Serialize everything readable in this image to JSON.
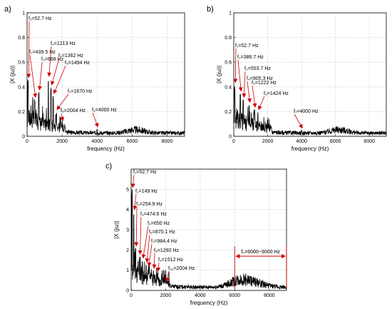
{
  "colors": {
    "signal": "#000000",
    "annotation": "#cc0000",
    "grid": "#c8c8c8"
  },
  "chart_data": [
    {
      "panel_label": "a)",
      "type": "line",
      "xlabel": "frequency (Hz)",
      "ylabel": "|X (jω)|",
      "xlim": [
        0,
        9000
      ],
      "ylim": [
        0,
        1
      ],
      "xticks": [
        "0",
        "2000",
        "4000",
        "6000",
        "8000"
      ],
      "yticks": [
        "0",
        "0.2",
        "0.4",
        "0.6",
        "0.8",
        "1"
      ],
      "grid": true,
      "peaks": [
        {
          "f": 52.7,
          "y": 0.46,
          "label": "f₁=52.7 Hz"
        },
        {
          "f": 439.5,
          "y": 0.3,
          "label": "f₂=439.5 Hz"
        },
        {
          "f": 668,
          "y": 0.36,
          "label": "f₃=668 Hz"
        },
        {
          "f": 1213,
          "y": 0.47,
          "label": "f₄=1213 Hz"
        },
        {
          "f": 1362,
          "y": 0.4,
          "label": "f₅=1362 Hz"
        },
        {
          "f": 1494,
          "y": 0.33,
          "label": "f₆=1494 Hz"
        },
        {
          "f": 1670,
          "y": 0.2,
          "label": "f₇=1670 Hz"
        },
        {
          "f": 2004,
          "y": 0.11,
          "label": "f₈=2004 Hz"
        },
        {
          "f": 4000,
          "y": 0.06,
          "label": "f₉=4000 Hz"
        }
      ]
    },
    {
      "panel_label": "b)",
      "type": "line",
      "xlabel": "frequency (Hz)",
      "ylabel": "|X (jω)|",
      "xlim": [
        0,
        9000
      ],
      "ylim": [
        0,
        1
      ],
      "xticks": [
        "0",
        "2000",
        "4000",
        "6000",
        "8000"
      ],
      "yticks": [
        "0",
        "0.2",
        "0.4",
        "0.6",
        "0.8",
        "1"
      ],
      "grid": true,
      "peaks": [
        {
          "f": 52.7,
          "y": 0.42,
          "label": "f₁=52.7 Hz"
        },
        {
          "f": 386.7,
          "y": 0.35,
          "label": "f₂=386.7 Hz"
        },
        {
          "f": 553.7,
          "y": 0.3,
          "label": "f₃=553.7 Hz"
        },
        {
          "f": 905.3,
          "y": 0.26,
          "label": "f₄=905.3 Hz"
        },
        {
          "f": 1222,
          "y": 0.22,
          "label": "f₅=1222 Hz"
        },
        {
          "f": 1424,
          "y": 0.2,
          "label": "f₆=1424 Hz"
        },
        {
          "f": 4000,
          "y": 0.05,
          "label": "f₇=4000 Hz"
        }
      ]
    },
    {
      "panel_label": "c)",
      "type": "line",
      "xlabel": "frequency (Hz)",
      "ylabel": "|X (jω)|",
      "xlim": [
        0,
        9000
      ],
      "ylim": [
        0,
        6
      ],
      "xticks": [
        "0",
        "2000",
        "4000",
        "6000",
        "8000"
      ],
      "yticks": [
        "0",
        "1",
        "2",
        "3",
        "4",
        "5"
      ],
      "grid": true,
      "band": {
        "from": 6000,
        "to": 9000,
        "label": "f₀=6000−9000 Hz"
      },
      "peaks": [
        {
          "f": 52.7,
          "y": 5.0,
          "label": "f₁=52.7 Hz"
        },
        {
          "f": 149,
          "y": 3.9,
          "label": "f₂=149 Hz"
        },
        {
          "f": 254.9,
          "y": 2.1,
          "label": "f₃=254.9 Hz"
        },
        {
          "f": 474.6,
          "y": 1.7,
          "label": "f₄=474.6 Hz"
        },
        {
          "f": 650,
          "y": 1.5,
          "label": "f₅=650 Hz"
        },
        {
          "f": 870.1,
          "y": 1.3,
          "label": "f₆=870.1 Hz"
        },
        {
          "f": 984.4,
          "y": 1.1,
          "label": "f₇=984.4 Hz"
        },
        {
          "f": 1292,
          "y": 1.0,
          "label": "f₈=1292 Hz"
        },
        {
          "f": 1512,
          "y": 0.85,
          "label": "f₉=1512 Hz"
        },
        {
          "f": 2004,
          "y": 0.35,
          "label": "f₁₀=2004 Hz"
        }
      ]
    }
  ]
}
